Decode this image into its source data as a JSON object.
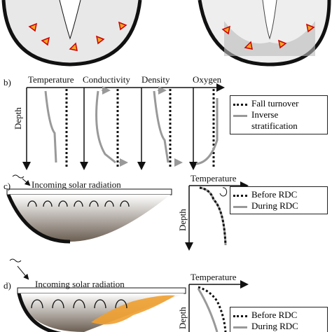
{
  "panel_b": {
    "label": "b)",
    "columns": [
      "Temperature",
      "Conductivity",
      "Density",
      "Oxygen"
    ],
    "depth": "Depth",
    "legend": [
      "Fall turnover",
      "Inverse stratification"
    ]
  },
  "panel_c": {
    "label": "c)",
    "radiation": "Incoming solar radiation",
    "profile_title": "Temperature",
    "depth": "Depth",
    "legend": [
      "Before RDC",
      "During RDC"
    ]
  },
  "panel_d": {
    "label": "d)",
    "radiation": "Incoming solar radiation",
    "profile_title": "Temperature",
    "depth": "Depth",
    "legend": [
      "Before RDC",
      "During RDC"
    ]
  }
}
